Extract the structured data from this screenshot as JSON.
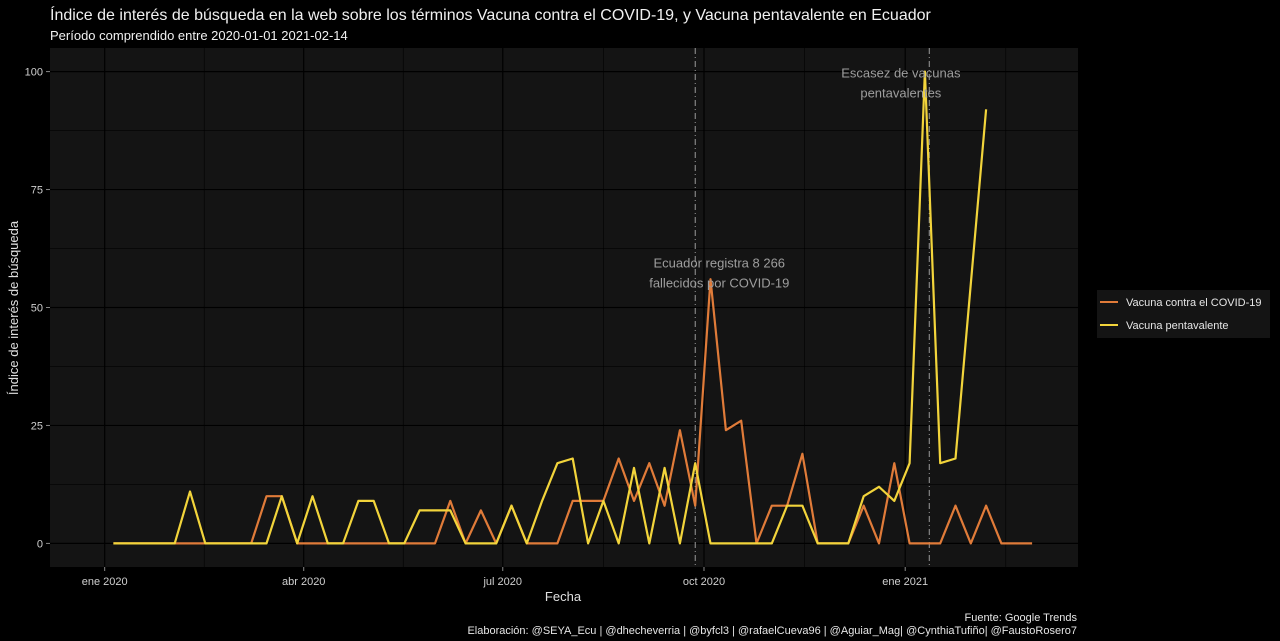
{
  "chart_data": {
    "type": "line",
    "title": "Índice de interés de búsqueda en la web sobre los términos Vacuna contra el COVID-19, y Vacuna pentavalente en Ecuador",
    "subtitle": "Período comprendido entre 2020-01-01 2021-02-14",
    "xlabel": "Fecha",
    "ylabel": "Índice de interés de búsqueda",
    "xlim": [
      "2019-12-07",
      "2021-03-21"
    ],
    "ylim": [
      -5,
      105
    ],
    "x_ticks": [
      {
        "date": "2020-01-01",
        "label": "ene 2020"
      },
      {
        "date": "2020-04-01",
        "label": "abr 2020"
      },
      {
        "date": "2020-07-01",
        "label": "jul 2020"
      },
      {
        "date": "2020-10-01",
        "label": "oct 2020"
      },
      {
        "date": "2021-01-01",
        "label": "ene 2021"
      }
    ],
    "y_ticks": [
      0,
      25,
      50,
      75,
      100
    ],
    "grid": true,
    "legend_position": "right",
    "series": [
      {
        "name": "Vacuna contra el COVID-19",
        "color": "#e07b39",
        "points": [
          [
            "2020-01-05",
            0
          ],
          [
            "2020-01-12",
            0
          ],
          [
            "2020-01-19",
            0
          ],
          [
            "2020-01-26",
            0
          ],
          [
            "2020-02-02",
            0
          ],
          [
            "2020-02-09",
            0
          ],
          [
            "2020-02-16",
            0
          ],
          [
            "2020-02-23",
            0
          ],
          [
            "2020-03-01",
            0
          ],
          [
            "2020-03-08",
            0
          ],
          [
            "2020-03-15",
            10
          ],
          [
            "2020-03-22",
            10
          ],
          [
            "2020-03-29",
            0
          ],
          [
            "2020-04-05",
            0
          ],
          [
            "2020-04-12",
            0
          ],
          [
            "2020-04-19",
            0
          ],
          [
            "2020-04-26",
            0
          ],
          [
            "2020-05-03",
            0
          ],
          [
            "2020-05-10",
            0
          ],
          [
            "2020-05-17",
            0
          ],
          [
            "2020-05-24",
            0
          ],
          [
            "2020-05-31",
            0
          ],
          [
            "2020-06-07",
            9
          ],
          [
            "2020-06-14",
            0
          ],
          [
            "2020-06-21",
            7
          ],
          [
            "2020-06-28",
            0
          ],
          [
            "2020-07-05",
            8
          ],
          [
            "2020-07-12",
            0
          ],
          [
            "2020-07-19",
            0
          ],
          [
            "2020-07-26",
            0
          ],
          [
            "2020-08-02",
            9
          ],
          [
            "2020-08-09",
            9
          ],
          [
            "2020-08-16",
            9
          ],
          [
            "2020-08-23",
            18
          ],
          [
            "2020-08-30",
            9
          ],
          [
            "2020-09-06",
            17
          ],
          [
            "2020-09-13",
            8
          ],
          [
            "2020-09-20",
            24
          ],
          [
            "2020-09-27",
            8
          ],
          [
            "2020-10-04",
            56
          ],
          [
            "2020-10-11",
            24
          ],
          [
            "2020-10-18",
            26
          ],
          [
            "2020-10-25",
            0
          ],
          [
            "2020-11-01",
            8
          ],
          [
            "2020-11-08",
            8
          ],
          [
            "2020-11-15",
            19
          ],
          [
            "2020-11-22",
            0
          ],
          [
            "2020-11-29",
            0
          ],
          [
            "2020-12-06",
            0
          ],
          [
            "2020-12-13",
            8
          ],
          [
            "2020-12-20",
            0
          ],
          [
            "2020-12-27",
            17
          ],
          [
            "2021-01-03",
            0
          ],
          [
            "2021-01-10",
            0
          ],
          [
            "2021-01-17",
            0
          ],
          [
            "2021-01-24",
            8
          ],
          [
            "2021-01-31",
            0
          ],
          [
            "2021-02-07",
            8
          ],
          [
            "2021-02-14",
            0
          ],
          [
            "2021-02-21",
            0
          ],
          [
            "2021-02-28",
            0
          ]
        ]
      },
      {
        "name": "Vacuna pentavalente",
        "color": "#f2d43b",
        "points": [
          [
            "2020-01-05",
            0
          ],
          [
            "2020-01-12",
            0
          ],
          [
            "2020-01-19",
            0
          ],
          [
            "2020-01-26",
            0
          ],
          [
            "2020-02-02",
            0
          ],
          [
            "2020-02-09",
            11
          ],
          [
            "2020-02-16",
            0
          ],
          [
            "2020-02-23",
            0
          ],
          [
            "2020-03-01",
            0
          ],
          [
            "2020-03-08",
            0
          ],
          [
            "2020-03-15",
            0
          ],
          [
            "2020-03-22",
            10
          ],
          [
            "2020-03-29",
            0
          ],
          [
            "2020-04-05",
            10
          ],
          [
            "2020-04-12",
            0
          ],
          [
            "2020-04-19",
            0
          ],
          [
            "2020-04-26",
            9
          ],
          [
            "2020-05-03",
            9
          ],
          [
            "2020-05-10",
            0
          ],
          [
            "2020-05-17",
            0
          ],
          [
            "2020-05-24",
            7
          ],
          [
            "2020-05-31",
            7
          ],
          [
            "2020-06-07",
            7
          ],
          [
            "2020-06-14",
            0
          ],
          [
            "2020-06-21",
            0
          ],
          [
            "2020-06-28",
            0
          ],
          [
            "2020-07-05",
            8
          ],
          [
            "2020-07-12",
            0
          ],
          [
            "2020-07-19",
            9
          ],
          [
            "2020-07-26",
            17
          ],
          [
            "2020-08-02",
            18
          ],
          [
            "2020-08-09",
            0
          ],
          [
            "2020-08-16",
            9
          ],
          [
            "2020-08-23",
            0
          ],
          [
            "2020-08-30",
            16
          ],
          [
            "2020-09-06",
            0
          ],
          [
            "2020-09-13",
            16
          ],
          [
            "2020-09-20",
            0
          ],
          [
            "2020-09-27",
            17
          ],
          [
            "2020-10-04",
            0
          ],
          [
            "2020-10-11",
            0
          ],
          [
            "2020-10-18",
            0
          ],
          [
            "2020-10-25",
            0
          ],
          [
            "2020-11-01",
            0
          ],
          [
            "2020-11-08",
            8
          ],
          [
            "2020-11-15",
            8
          ],
          [
            "2020-11-22",
            0
          ],
          [
            "2020-11-29",
            0
          ],
          [
            "2020-12-06",
            0
          ],
          [
            "2020-12-13",
            10
          ],
          [
            "2020-12-20",
            12
          ],
          [
            "2020-12-27",
            9
          ],
          [
            "2021-01-03",
            17
          ],
          [
            "2021-01-10",
            100
          ],
          [
            "2021-01-17",
            17
          ],
          [
            "2021-01-24",
            18
          ],
          [
            "2021-01-31",
            55
          ],
          [
            "2021-02-07",
            92
          ]
        ]
      }
    ],
    "reference_lines": [
      {
        "date": "2020-09-27",
        "style": "dashed"
      },
      {
        "date": "2021-01-12",
        "style": "dashed"
      }
    ],
    "annotations": [
      {
        "lines": [
          "Ecuador registra 8 266",
          "fallecidos por COVID-19"
        ],
        "date": "2020-10-08",
        "y": 58.5
      },
      {
        "lines": [
          "Escasez de vacunas",
          "pentavalentes"
        ],
        "date": "2020-12-30",
        "y": 98.7
      }
    ],
    "caption": {
      "source": "Fuente: Google Trends",
      "credits": "Elaboración: @SEYA_Ecu | @dhecheverria | @byfcl3 | @rafaelCueva96 | @Aguiar_Mag| @CynthiaTufiño| @FaustoRosero7"
    }
  }
}
